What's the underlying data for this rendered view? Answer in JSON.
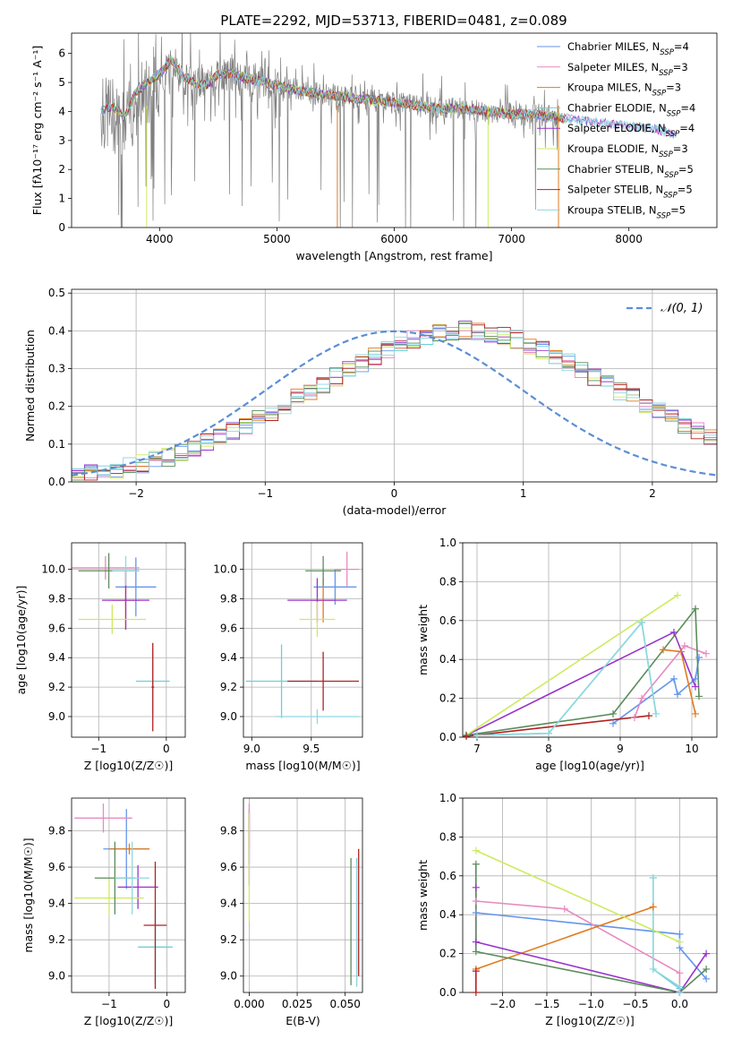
{
  "title": "PLATE=2292, MJD=53713, FIBERID=0481, z=0.089",
  "colors": [
    "#6495ED",
    "#E88AC0",
    "#E07B20",
    "#6ECFD6",
    "#9932CC",
    "#CDEB60",
    "#5B8C5A",
    "#B22222",
    "#8FD8E0"
  ],
  "legend_labels": [
    {
      "base": "Chabrier MILES, N",
      "sub": "SSP",
      "tail": "=4"
    },
    {
      "base": "Salpeter MILES, N",
      "sub": "SSP",
      "tail": "=3"
    },
    {
      "base": "Kroupa MILES, N",
      "sub": "SSP",
      "tail": "=3"
    },
    {
      "base": "Chabrier ELODIE, N",
      "sub": "SSP",
      "tail": "=4"
    },
    {
      "base": "Salpeter ELODIE, N",
      "sub": "SSP",
      "tail": "=4"
    },
    {
      "base": "Kroupa ELODIE, N",
      "sub": "SSP",
      "tail": "=3"
    },
    {
      "base": "Chabrier STELIB, N",
      "sub": "SSP",
      "tail": "=5"
    },
    {
      "base": "Salpeter STELIB, N",
      "sub": "SSP",
      "tail": "=5"
    },
    {
      "base": "Kroupa STELIB, N",
      "sub": "SSP",
      "tail": "=5"
    }
  ],
  "chart_data": [
    {
      "id": "spectrum",
      "type": "line",
      "xlabel": "wavelength [Angstrom, rest frame]",
      "ylabel": "Flux [fλ10⁻¹⁷ erg cm⁻² s⁻¹ A⁻¹]",
      "xlim": [
        3250,
        8750
      ],
      "ylim": [
        0,
        6.7
      ],
      "xticks": [
        4000,
        5000,
        6000,
        7000,
        8000
      ],
      "yticks": [
        0,
        1,
        2,
        3,
        4,
        5,
        6
      ],
      "data_color": "#808080",
      "data_x": [
        3500,
        3600,
        3700,
        3800,
        3900,
        4000,
        4100,
        4200,
        4300,
        4400,
        4500,
        4600,
        4700,
        4800,
        4900,
        5000,
        5200,
        5400,
        5600,
        5800,
        6000,
        6200,
        6400,
        6600,
        6800,
        7000,
        7200,
        7400
      ],
      "data_y": [
        3.9,
        3.9,
        3.5,
        4.3,
        4.7,
        5.2,
        5.6,
        5.1,
        5.0,
        4.9,
        5.2,
        5.3,
        5.1,
        5.1,
        5.0,
        4.9,
        4.7,
        4.6,
        4.5,
        4.4,
        4.3,
        4.2,
        4.1,
        4.1,
        4.0,
        3.9,
        3.9,
        3.8
      ],
      "model_x": [
        3500,
        3600,
        3700,
        3800,
        3900,
        4000,
        4100,
        4200,
        4300,
        4400,
        4500,
        4600,
        4800,
        5000,
        5200,
        5400,
        5600,
        5800,
        6000,
        6200,
        6400,
        6600,
        6800,
        7000,
        7200,
        7400,
        7600,
        7800,
        8000,
        8200,
        8400
      ],
      "model_y": [
        4.0,
        4.2,
        3.8,
        4.7,
        5.0,
        5.3,
        5.8,
        5.2,
        5.0,
        4.9,
        5.3,
        5.3,
        5.1,
        4.9,
        4.7,
        4.6,
        4.5,
        4.4,
        4.3,
        4.2,
        4.1,
        4.1,
        4.0,
        3.9,
        3.9,
        3.8,
        3.7,
        3.6,
        3.5,
        3.4,
        3.2
      ],
      "sharp_dips": [
        {
          "x": 5515,
          "series": 2
        },
        {
          "x": 3890,
          "series": 5
        },
        {
          "x": 6800,
          "series": 5
        },
        {
          "x": 7400,
          "series": 2
        }
      ]
    },
    {
      "id": "residuals",
      "type": "line",
      "xlabel": "(data-model)/error",
      "ylabel": "Normed distribution",
      "xlim": [
        -2.5,
        2.5
      ],
      "ylim": [
        0,
        0.51
      ],
      "xticks": [
        -2,
        -1,
        0,
        1,
        2
      ],
      "yticks": [
        0.0,
        0.1,
        0.2,
        0.3,
        0.4,
        0.5
      ],
      "xticklabels": [
        "−2",
        "−1",
        "0",
        "1",
        "2"
      ],
      "yticklabels": [
        "0.0",
        "0.1",
        "0.2",
        "0.3",
        "0.4",
        "0.5"
      ],
      "bin_width": 0.1,
      "bin_start": -2.5,
      "histogram_density": [
        0.018,
        0.022,
        0.027,
        0.033,
        0.04,
        0.047,
        0.056,
        0.066,
        0.079,
        0.09,
        0.104,
        0.119,
        0.135,
        0.15,
        0.167,
        0.185,
        0.202,
        0.222,
        0.24,
        0.26,
        0.279,
        0.297,
        0.315,
        0.333,
        0.35,
        0.363,
        0.377,
        0.387,
        0.395,
        0.4,
        0.402,
        0.4,
        0.395,
        0.387,
        0.377,
        0.363,
        0.35,
        0.333,
        0.315,
        0.297,
        0.279,
        0.26,
        0.24,
        0.222,
        0.202,
        0.185,
        0.167,
        0.15,
        0.135,
        0.119
      ],
      "reference_curve": "Normal(0,1)",
      "legend": "𝒩(0, 1)"
    },
    {
      "id": "age_vs_Z",
      "type": "scatter",
      "xlabel": "Z [log10(Z/Z☉)]",
      "ylabel": "age [log10(age/yr)]",
      "xlim": [
        -1.4,
        0.28
      ],
      "ylim": [
        8.86,
        10.18
      ],
      "xticks": [
        -1,
        0
      ],
      "yticks": [
        9.0,
        9.2,
        9.4,
        9.6,
        9.8,
        10.0
      ],
      "xticklabels": [
        "−1",
        "0"
      ],
      "yticklabels": [
        "9.0",
        "9.2",
        "9.4",
        "9.6",
        "9.8",
        "10.0"
      ],
      "points": [
        {
          "s": 0,
          "x": -0.45,
          "y": 9.88,
          "xe": 0.3,
          "ye": 0.2
        },
        {
          "s": 1,
          "x": -0.9,
          "y": 10.01,
          "xe": 0.5,
          "ye": 0.08
        },
        {
          "s": 2,
          "x": -0.6,
          "y": 9.79,
          "xe": 0.2,
          "ye": 0.2
        },
        {
          "s": 3,
          "x": -0.2,
          "y": 9.24,
          "xe": 0.25,
          "ye": 0.22
        },
        {
          "s": 4,
          "x": -0.6,
          "y": 9.79,
          "xe": 0.35,
          "ye": 0.2
        },
        {
          "s": 5,
          "x": -0.8,
          "y": 9.66,
          "xe": 0.5,
          "ye": 0.1
        },
        {
          "s": 6,
          "x": -0.85,
          "y": 9.99,
          "xe": 0.45,
          "ye": 0.12
        },
        {
          "s": 7,
          "x": -0.2,
          "y": 9.2,
          "xe": 0.02,
          "ye": 0.3
        },
        {
          "s": 8,
          "x": -0.6,
          "y": 9.99,
          "xe": 0.2,
          "ye": 0.1
        }
      ]
    },
    {
      "id": "age_vs_mass",
      "type": "scatter",
      "xlabel": "mass [log10(M/M☉)]",
      "ylabel": "",
      "xlim": [
        8.93,
        9.93
      ],
      "ylim": [
        8.86,
        10.18
      ],
      "xticks": [
        9.0,
        9.5
      ],
      "yticks": [
        9.0,
        9.2,
        9.4,
        9.6,
        9.8,
        10.0
      ],
      "xticklabels": [
        "9.0",
        "9.5"
      ],
      "yticklabels": [
        "9.0",
        "9.2",
        "9.4",
        "9.6",
        "9.8",
        "10.0"
      ],
      "points": [
        {
          "s": 0,
          "x": 9.7,
          "y": 9.88,
          "xe": 0.18,
          "ye": 0.12
        },
        {
          "s": 1,
          "x": 9.8,
          "y": 10.0,
          "xe": 0.1,
          "ye": 0.12
        },
        {
          "s": 2,
          "x": 9.6,
          "y": 9.79,
          "xe": 0.1,
          "ye": 0.15
        },
        {
          "s": 3,
          "x": 9.25,
          "y": 9.24,
          "xe": 0.3,
          "ye": 0.25
        },
        {
          "s": 4,
          "x": 9.55,
          "y": 9.79,
          "xe": 0.25,
          "ye": 0.15
        },
        {
          "s": 5,
          "x": 9.55,
          "y": 9.66,
          "xe": 0.15,
          "ye": 0.12
        },
        {
          "s": 6,
          "x": 9.6,
          "y": 9.99,
          "xe": 0.15,
          "ye": 0.1
        },
        {
          "s": 7,
          "x": 9.6,
          "y": 9.24,
          "xe": 0.3,
          "ye": 0.2
        },
        {
          "s": 8,
          "x": 9.55,
          "y": 9.0,
          "xe": 0.35,
          "ye": 0.05
        }
      ]
    },
    {
      "id": "weight_vs_age",
      "type": "line",
      "xlabel": "age  [log10(age/yr)]",
      "ylabel": "mass weight",
      "xlim": [
        6.8,
        10.35
      ],
      "ylim": [
        0,
        1.0
      ],
      "xticks": [
        7,
        8,
        9,
        10
      ],
      "yticks": [
        0.0,
        0.2,
        0.4,
        0.6,
        0.8,
        1.0
      ],
      "xticklabels": [
        "7",
        "8",
        "9",
        "10"
      ],
      "yticklabels": [
        "0.0",
        "0.2",
        "0.4",
        "0.6",
        "0.8",
        "1.0"
      ],
      "series": [
        {
          "s": 0,
          "x": [
            8.9,
            9.75,
            9.8,
            10.05,
            10.1
          ],
          "y": [
            0.07,
            0.3,
            0.22,
            0.3,
            0.41
          ]
        },
        {
          "s": 1,
          "x": [
            9.2,
            9.3,
            9.9,
            10.2
          ],
          "y": [
            0.1,
            0.2,
            0.47,
            0.43
          ]
        },
        {
          "s": 2,
          "x": [
            9.6,
            9.85,
            10.05
          ],
          "y": [
            0.45,
            0.44,
            0.12
          ]
        },
        {
          "s": 3,
          "x": [
            7.0,
            8.0,
            9.3,
            9.5
          ],
          "y": [
            0.01,
            0.02,
            0.59,
            0.12
          ]
        },
        {
          "s": 4,
          "x": [
            6.85,
            9.75,
            10.05
          ],
          "y": [
            0.01,
            0.54,
            0.26
          ]
        },
        {
          "s": 5,
          "x": [
            6.85,
            9.8
          ],
          "y": [
            0.01,
            0.73
          ]
        },
        {
          "s": 6,
          "x": [
            6.85,
            8.9,
            10.05,
            10.1
          ],
          "y": [
            0.01,
            0.12,
            0.66,
            0.21
          ]
        },
        {
          "s": 7,
          "x": [
            6.85,
            9.4
          ],
          "y": [
            0.005,
            0.11
          ]
        },
        {
          "s": 8,
          "x": [
            7.0,
            8.0,
            9.3,
            9.5
          ],
          "y": [
            0.01,
            0.02,
            0.59,
            0.12
          ]
        }
      ]
    },
    {
      "id": "mass_vs_Z",
      "type": "scatter",
      "xlabel": "Z [log10(Z/Z☉)]",
      "ylabel": "mass [log10(M/M☉)]",
      "xlim": [
        -1.65,
        0.32
      ],
      "ylim": [
        8.91,
        9.98
      ],
      "xticks": [
        -1,
        0
      ],
      "yticks": [
        9.0,
        9.2,
        9.4,
        9.6,
        9.8
      ],
      "xticklabels": [
        "−1",
        "0"
      ],
      "yticklabels": [
        "9.0",
        "9.2",
        "9.4",
        "9.6",
        "9.8"
      ],
      "points": [
        {
          "s": 0,
          "x": -0.7,
          "y": 9.7,
          "xe": 0.4,
          "ye": 0.22
        },
        {
          "s": 1,
          "x": -1.1,
          "y": 9.87,
          "xe": 0.5,
          "ye": 0.08
        },
        {
          "s": 2,
          "x": -0.65,
          "y": 9.7,
          "xe": 0.35,
          "ye": 0.03
        },
        {
          "s": 3,
          "x": -0.2,
          "y": 9.16,
          "xe": 0.3,
          "ye": 0.2
        },
        {
          "s": 4,
          "x": -0.5,
          "y": 9.49,
          "xe": 0.35,
          "ye": 0.12
        },
        {
          "s": 5,
          "x": -1.0,
          "y": 9.43,
          "xe": 0.6,
          "ye": 0.1
        },
        {
          "s": 6,
          "x": -0.9,
          "y": 9.54,
          "xe": 0.35,
          "ye": 0.2
        },
        {
          "s": 7,
          "x": -0.2,
          "y": 9.28,
          "xe": 0.2,
          "ye": 0.35
        },
        {
          "s": 8,
          "x": -0.6,
          "y": 9.54,
          "xe": 0.3,
          "ye": 0.2
        }
      ]
    },
    {
      "id": "mass_vs_ebv",
      "type": "scatter",
      "xlabel": "E(B-V)",
      "ylabel": "",
      "xlim": [
        -0.003,
        0.059
      ],
      "ylim": [
        8.91,
        9.98
      ],
      "xticks": [
        0.0,
        0.025,
        0.05
      ],
      "yticks": [
        9.0,
        9.2,
        9.4,
        9.6,
        9.8
      ],
      "xticklabels": [
        "0.000",
        "0.025",
        "0.050"
      ],
      "yticklabels": [
        "9.0",
        "9.2",
        "9.4",
        "9.6",
        "9.8"
      ],
      "points": [
        {
          "s": 0,
          "x": 0.0,
          "y": 9.77,
          "xe": 0,
          "ye": 0.15
        },
        {
          "s": 1,
          "x": 0.0,
          "y": 9.87,
          "xe": 0,
          "ye": 0.08
        },
        {
          "s": 2,
          "x": 0.0,
          "y": 9.8,
          "xe": 0,
          "ye": 0.1
        },
        {
          "s": 3,
          "x": 0.056,
          "y": 9.3,
          "xe": 0,
          "ye": 0.35
        },
        {
          "s": 4,
          "x": 0.0,
          "y": 9.7,
          "xe": 0,
          "ye": 0.2
        },
        {
          "s": 5,
          "x": 0.0,
          "y": 9.6,
          "xe": 0,
          "ye": 0.3
        },
        {
          "s": 6,
          "x": 0.053,
          "y": 9.3,
          "xe": 0,
          "ye": 0.35
        },
        {
          "s": 7,
          "x": 0.057,
          "y": 9.35,
          "xe": 0,
          "ye": 0.35
        },
        {
          "s": 8,
          "x": 0.056,
          "y": 9.28,
          "xe": 0,
          "ye": 0.34
        }
      ]
    },
    {
      "id": "weight_vs_Z",
      "type": "line",
      "xlabel": "Z [log10(Z/Z☉)]",
      "ylabel": "mass weight",
      "xlim": [
        -2.45,
        0.42
      ],
      "ylim": [
        0,
        1.0
      ],
      "xticks": [
        -2.0,
        -1.5,
        -1.0,
        -0.5,
        0.0
      ],
      "yticks": [
        0.0,
        0.2,
        0.4,
        0.6,
        0.8,
        1.0
      ],
      "xticklabels": [
        "−2.0",
        "−1.5",
        "−1.0",
        "−0.5",
        "0.0"
      ],
      "yticklabels": [
        "0.0",
        "0.2",
        "0.4",
        "0.6",
        "0.8",
        "1.0"
      ],
      "series": [
        {
          "s": 0,
          "x": [
            -2.3,
            0.0,
            0.0,
            0.3
          ],
          "y": [
            0.41,
            0.3,
            0.23,
            0.07
          ]
        },
        {
          "s": 1,
          "x": [
            -2.3,
            -1.3,
            0.0,
            0.0
          ],
          "y": [
            0.47,
            0.43,
            0.1,
            0.0
          ]
        },
        {
          "s": 2,
          "x": [
            -2.3,
            -0.3
          ],
          "y": [
            0.12,
            0.44
          ]
        },
        {
          "s": 3,
          "x": [
            -0.3,
            -0.3,
            0.0,
            0.0
          ],
          "y": [
            0.59,
            0.12,
            0.02,
            0.0
          ]
        },
        {
          "s": 4,
          "x": [
            -2.3,
            -2.3,
            0.0,
            0.3
          ],
          "y": [
            0.54,
            0.26,
            0.0,
            0.2
          ]
        },
        {
          "s": 5,
          "x": [
            -2.3,
            0.0
          ],
          "y": [
            0.73,
            0.26
          ]
        },
        {
          "s": 6,
          "x": [
            -2.3,
            -2.3,
            0.0,
            0.3
          ],
          "y": [
            0.66,
            0.21,
            0.0,
            0.12
          ]
        },
        {
          "s": 7,
          "x": [
            -2.3,
            -2.3
          ],
          "y": [
            0.0,
            0.11
          ]
        },
        {
          "s": 8,
          "x": [
            -0.3,
            -0.3,
            0.0,
            0.0
          ],
          "y": [
            0.59,
            0.12,
            0.03,
            0.0
          ]
        }
      ]
    }
  ]
}
